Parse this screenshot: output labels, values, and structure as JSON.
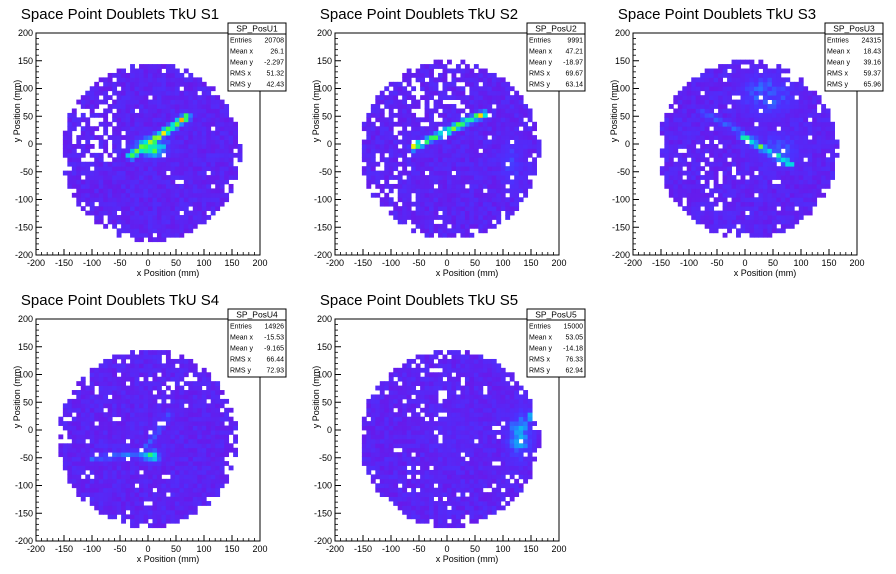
{
  "chart_data": [
    {
      "type": "heatmap",
      "title": "Space Point Doublets TkU S1",
      "xlabel": "x Position (mm)",
      "ylabel": "y Position (mm)",
      "xlim": [
        -200,
        200
      ],
      "ylim": [
        -200,
        200
      ],
      "x_ticks": [
        "-200",
        "-150",
        "-100",
        "-50",
        "0",
        "50",
        "100",
        "150",
        "200"
      ],
      "y_ticks": [
        "-200",
        "-150",
        "-100",
        "-50",
        "0",
        "50",
        "100",
        "150",
        "200"
      ],
      "stats": {
        "name": "SP_PosU1",
        "rows": [
          {
            "label": "Entries",
            "value": "20708"
          },
          {
            "label": "Mean x",
            "value": "26.1"
          },
          {
            "label": "Mean y",
            "value": "-2.297"
          },
          {
            "label": "RMS x",
            "value": "51.32"
          },
          {
            "label": "RMS y",
            "value": "42.43"
          }
        ]
      },
      "structure": {
        "disk_center": [
          5,
          -15
        ],
        "disk_radius": 160,
        "lines": [
          {
            "x1": -30,
            "y1": -20,
            "x2": 70,
            "y2": 50,
            "peak": 1.0
          }
        ],
        "blobs": [
          {
            "x": 5,
            "y": -5,
            "sx": 25,
            "sy": 15,
            "peak": 0.85
          }
        ],
        "empty_regions": [
          {
            "x": -95,
            "y": 25,
            "r": 60,
            "density": 0.5
          }
        ]
      }
    },
    {
      "type": "heatmap",
      "title": "Space Point Doublets TkU S2",
      "xlabel": "x Position (mm)",
      "ylabel": "y Position (mm)",
      "xlim": [
        -200,
        200
      ],
      "ylim": [
        -200,
        200
      ],
      "x_ticks": [
        "-200",
        "-150",
        "-100",
        "-50",
        "0",
        "50",
        "100",
        "150",
        "200"
      ],
      "y_ticks": [
        "-200",
        "-150",
        "-100",
        "-50",
        "0",
        "50",
        "100",
        "150",
        "200"
      ],
      "stats": {
        "name": "SP_PosU2",
        "rows": [
          {
            "label": "Entries",
            "value": "9991"
          },
          {
            "label": "Mean x",
            "value": "47.21"
          },
          {
            "label": "Mean y",
            "value": "-18.97"
          },
          {
            "label": "RMS x",
            "value": "69.67"
          },
          {
            "label": "RMS y",
            "value": "63.14"
          }
        ]
      },
      "structure": {
        "disk_center": [
          5,
          -10
        ],
        "disk_radius": 160,
        "lines": [
          {
            "x1": -60,
            "y1": -5,
            "x2": 65,
            "y2": 55,
            "peak": 0.9
          }
        ],
        "blobs": [
          {
            "x": 115,
            "y": -35,
            "sx": 20,
            "sy": 50,
            "peak": 0.35
          }
        ],
        "empty_regions": [
          {
            "x": -40,
            "y": 80,
            "r": 80,
            "density": 0.35
          },
          {
            "x": -100,
            "y": -60,
            "r": 60,
            "density": 0.3
          }
        ]
      }
    },
    {
      "type": "heatmap",
      "title": "Space Point Doublets TkU S3",
      "xlabel": "x Position (mm)",
      "ylabel": "y Position (mm)",
      "xlim": [
        -200,
        200
      ],
      "ylim": [
        -200,
        200
      ],
      "x_ticks": [
        "-200",
        "-150",
        "-100",
        "-50",
        "0",
        "50",
        "100",
        "150",
        "200"
      ],
      "y_ticks": [
        "-200",
        "-150",
        "-100",
        "-50",
        "0",
        "50",
        "100",
        "150",
        "200"
      ],
      "stats": {
        "name": "SP_PosU3",
        "rows": [
          {
            "label": "Entries",
            "value": "24315"
          },
          {
            "label": "Mean x",
            "value": "18.43"
          },
          {
            "label": "Mean y",
            "value": "39.16"
          },
          {
            "label": "RMS x",
            "value": "59.37"
          },
          {
            "label": "RMS y",
            "value": "65.96"
          }
        ]
      },
      "structure": {
        "disk_center": [
          5,
          -10
        ],
        "disk_radius": 160,
        "lines": [
          {
            "x1": -5,
            "y1": 15,
            "x2": 80,
            "y2": -35,
            "peak": 0.8
          },
          {
            "x1": -80,
            "y1": 60,
            "x2": 20,
            "y2": 10,
            "peak": 0.45
          }
        ],
        "blobs": [
          {
            "x": 40,
            "y": 90,
            "sx": 45,
            "sy": 35,
            "peak": 0.45
          },
          {
            "x": 60,
            "y": -10,
            "sx": 40,
            "sy": 30,
            "peak": 0.4
          }
        ],
        "empty_regions": [
          {
            "x": -70,
            "y": -60,
            "r": 70,
            "density": 0.25
          }
        ]
      }
    },
    {
      "type": "heatmap",
      "title": "Space Point Doublets TkU S4",
      "xlabel": "x Position (mm)",
      "ylabel": "y Position (mm)",
      "xlim": [
        -200,
        200
      ],
      "ylim": [
        -200,
        200
      ],
      "x_ticks": [
        "-200",
        "-150",
        "-100",
        "-50",
        "0",
        "50",
        "100",
        "150",
        "200"
      ],
      "y_ticks": [
        "-200",
        "-150",
        "-100",
        "-50",
        "0",
        "50",
        "100",
        "150",
        "200"
      ],
      "stats": {
        "name": "SP_PosU4",
        "rows": [
          {
            "label": "Entries",
            "value": "14926"
          },
          {
            "label": "Mean x",
            "value": "-15.53"
          },
          {
            "label": "Mean y",
            "value": "-9.165"
          },
          {
            "label": "RMS x",
            "value": "66.44"
          },
          {
            "label": "RMS y",
            "value": "72.93"
          }
        ]
      },
      "structure": {
        "disk_center": [
          0,
          -15
        ],
        "disk_radius": 160,
        "lines": [
          {
            "x1": -100,
            "y1": -50,
            "x2": 10,
            "y2": -40,
            "peak": 0.5
          },
          {
            "x1": -10,
            "y1": -40,
            "x2": 40,
            "y2": 30,
            "peak": 0.45
          }
        ],
        "blobs": [
          {
            "x": 5,
            "y": -45,
            "sx": 15,
            "sy": 10,
            "peak": 0.75
          }
        ],
        "empty_regions": [
          {
            "x": 50,
            "y": 100,
            "r": 70,
            "density": 0.2
          }
        ]
      }
    },
    {
      "type": "heatmap",
      "title": "Space Point Doublets TkU S5",
      "xlabel": "x Position (mm)",
      "ylabel": "y Position (mm)",
      "xlim": [
        -200,
        200
      ],
      "ylim": [
        -200,
        200
      ],
      "x_ticks": [
        "-200",
        "-150",
        "-100",
        "-50",
        "0",
        "50",
        "100",
        "150",
        "200"
      ],
      "y_ticks": [
        "-200",
        "-150",
        "-100",
        "-50",
        "0",
        "50",
        "100",
        "150",
        "200"
      ],
      "stats": {
        "name": "SP_PosU5",
        "rows": [
          {
            "label": "Entries",
            "value": "15000"
          },
          {
            "label": "Mean x",
            "value": "53.05"
          },
          {
            "label": "Mean y",
            "value": "-14.18"
          },
          {
            "label": "RMS x",
            "value": "76.33"
          },
          {
            "label": "RMS y",
            "value": "62.94"
          }
        ]
      },
      "structure": {
        "disk_center": [
          5,
          -15
        ],
        "disk_radius": 160,
        "lines": [
          {
            "x1": 120,
            "y1": -40,
            "x2": 150,
            "y2": 30,
            "peak": 0.55
          }
        ],
        "blobs": [
          {
            "x": 130,
            "y": -10,
            "sx": 20,
            "sy": 40,
            "peak": 0.55
          },
          {
            "x": 10,
            "y": 0,
            "sx": 60,
            "sy": 50,
            "peak": 0.2
          }
        ],
        "empty_regions": [
          {
            "x": -50,
            "y": 90,
            "r": 80,
            "density": 0.3
          }
        ]
      }
    }
  ]
}
